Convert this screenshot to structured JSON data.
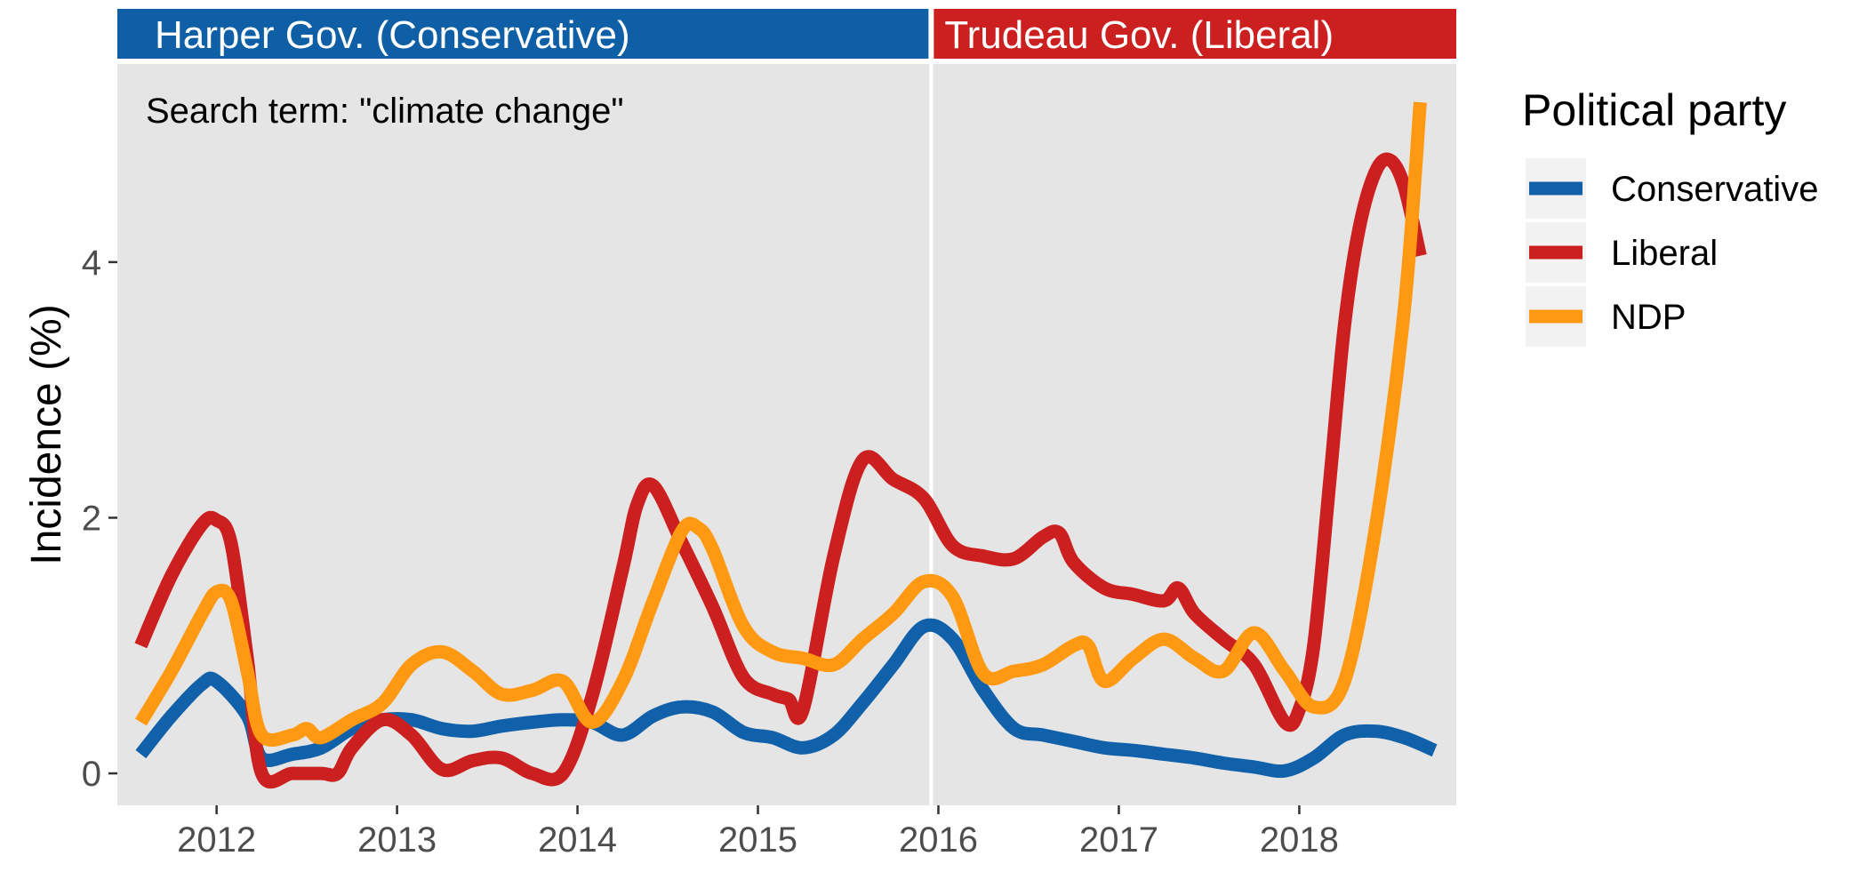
{
  "chart_data": {
    "type": "line",
    "title": "",
    "xlabel": "",
    "ylabel": "Incidence (%)",
    "xlim": [
      2011.45,
      2018.87
    ],
    "ylim": [
      -0.25,
      5.55
    ],
    "x_ticks": [
      2012,
      2013,
      2014,
      2015,
      2016,
      2017,
      2018
    ],
    "y_ticks": [
      0,
      2,
      4
    ],
    "grid": false,
    "legend": {
      "title": "Political party",
      "placement": "right"
    },
    "annotation": "Search term: \"climate change\"",
    "panels": [
      {
        "label": "Harper Gov. (Conservative)",
        "x_range": [
          2011.45,
          2015.96
        ],
        "color": "#0f5fa6"
      },
      {
        "label": "Trudeau Gov. (Liberal)",
        "x_range": [
          2015.96,
          2018.87
        ],
        "color": "#cc1f1f"
      }
    ],
    "series": [
      {
        "name": "Conservative",
        "color": "#1060aa",
        "points": [
          [
            2011.58,
            0.15
          ],
          [
            2011.75,
            0.45
          ],
          [
            2011.92,
            0.7
          ],
          [
            2012.0,
            0.72
          ],
          [
            2012.17,
            0.45
          ],
          [
            2012.25,
            0.12
          ],
          [
            2012.42,
            0.15
          ],
          [
            2012.58,
            0.2
          ],
          [
            2012.75,
            0.35
          ],
          [
            2012.92,
            0.42
          ],
          [
            2013.08,
            0.42
          ],
          [
            2013.25,
            0.35
          ],
          [
            2013.42,
            0.33
          ],
          [
            2013.58,
            0.37
          ],
          [
            2013.75,
            0.4
          ],
          [
            2013.92,
            0.42
          ],
          [
            2014.08,
            0.4
          ],
          [
            2014.25,
            0.3
          ],
          [
            2014.42,
            0.45
          ],
          [
            2014.58,
            0.52
          ],
          [
            2014.75,
            0.48
          ],
          [
            2014.92,
            0.32
          ],
          [
            2015.08,
            0.28
          ],
          [
            2015.25,
            0.2
          ],
          [
            2015.42,
            0.3
          ],
          [
            2015.58,
            0.55
          ],
          [
            2015.75,
            0.85
          ],
          [
            2015.92,
            1.15
          ],
          [
            2016.08,
            1.05
          ],
          [
            2016.25,
            0.65
          ],
          [
            2016.42,
            0.35
          ],
          [
            2016.58,
            0.3
          ],
          [
            2016.75,
            0.25
          ],
          [
            2016.92,
            0.2
          ],
          [
            2017.08,
            0.18
          ],
          [
            2017.25,
            0.15
          ],
          [
            2017.42,
            0.12
          ],
          [
            2017.58,
            0.08
          ],
          [
            2017.75,
            0.05
          ],
          [
            2017.92,
            0.02
          ],
          [
            2018.08,
            0.12
          ],
          [
            2018.25,
            0.3
          ],
          [
            2018.42,
            0.33
          ],
          [
            2018.58,
            0.28
          ],
          [
            2018.75,
            0.18
          ]
        ]
      },
      {
        "name": "Liberal",
        "color": "#cc1f1f",
        "points": [
          [
            2011.58,
            1.0
          ],
          [
            2011.75,
            1.55
          ],
          [
            2011.92,
            1.95
          ],
          [
            2012.0,
            1.98
          ],
          [
            2012.08,
            1.8
          ],
          [
            2012.17,
            0.9
          ],
          [
            2012.25,
            0.0
          ],
          [
            2012.42,
            0.0
          ],
          [
            2012.58,
            0.0
          ],
          [
            2012.67,
            0.0
          ],
          [
            2012.75,
            0.2
          ],
          [
            2012.92,
            0.42
          ],
          [
            2013.08,
            0.3
          ],
          [
            2013.25,
            0.03
          ],
          [
            2013.42,
            0.1
          ],
          [
            2013.58,
            0.12
          ],
          [
            2013.75,
            0.0
          ],
          [
            2013.92,
            0.0
          ],
          [
            2014.08,
            0.6
          ],
          [
            2014.25,
            1.6
          ],
          [
            2014.33,
            2.1
          ],
          [
            2014.42,
            2.25
          ],
          [
            2014.58,
            1.8
          ],
          [
            2014.75,
            1.3
          ],
          [
            2014.92,
            0.75
          ],
          [
            2015.08,
            0.62
          ],
          [
            2015.17,
            0.58
          ],
          [
            2015.25,
            0.5
          ],
          [
            2015.42,
            1.7
          ],
          [
            2015.58,
            2.45
          ],
          [
            2015.75,
            2.3
          ],
          [
            2015.92,
            2.15
          ],
          [
            2016.08,
            1.78
          ],
          [
            2016.25,
            1.7
          ],
          [
            2016.42,
            1.68
          ],
          [
            2016.58,
            1.85
          ],
          [
            2016.67,
            1.88
          ],
          [
            2016.75,
            1.65
          ],
          [
            2016.92,
            1.45
          ],
          [
            2017.08,
            1.4
          ],
          [
            2017.25,
            1.35
          ],
          [
            2017.33,
            1.45
          ],
          [
            2017.42,
            1.25
          ],
          [
            2017.58,
            1.05
          ],
          [
            2017.75,
            0.85
          ],
          [
            2017.92,
            0.4
          ],
          [
            2018.0,
            0.5
          ],
          [
            2018.08,
            1.0
          ],
          [
            2018.17,
            2.3
          ],
          [
            2018.25,
            3.5
          ],
          [
            2018.33,
            4.25
          ],
          [
            2018.42,
            4.7
          ],
          [
            2018.5,
            4.8
          ],
          [
            2018.58,
            4.6
          ],
          [
            2018.67,
            4.05
          ]
        ]
      },
      {
        "name": "NDP",
        "color": "#ff9912",
        "points": [
          [
            2011.58,
            0.4
          ],
          [
            2011.75,
            0.8
          ],
          [
            2011.92,
            1.25
          ],
          [
            2012.0,
            1.42
          ],
          [
            2012.08,
            1.35
          ],
          [
            2012.17,
            0.8
          ],
          [
            2012.25,
            0.3
          ],
          [
            2012.42,
            0.3
          ],
          [
            2012.5,
            0.35
          ],
          [
            2012.58,
            0.28
          ],
          [
            2012.75,
            0.42
          ],
          [
            2012.92,
            0.55
          ],
          [
            2013.08,
            0.85
          ],
          [
            2013.25,
            0.95
          ],
          [
            2013.42,
            0.8
          ],
          [
            2013.58,
            0.62
          ],
          [
            2013.75,
            0.65
          ],
          [
            2013.92,
            0.72
          ],
          [
            2014.08,
            0.4
          ],
          [
            2014.25,
            0.72
          ],
          [
            2014.42,
            1.35
          ],
          [
            2014.58,
            1.9
          ],
          [
            2014.67,
            1.92
          ],
          [
            2014.75,
            1.75
          ],
          [
            2014.92,
            1.15
          ],
          [
            2015.08,
            0.95
          ],
          [
            2015.25,
            0.9
          ],
          [
            2015.42,
            0.85
          ],
          [
            2015.58,
            1.05
          ],
          [
            2015.75,
            1.25
          ],
          [
            2015.92,
            1.5
          ],
          [
            2016.08,
            1.38
          ],
          [
            2016.25,
            0.78
          ],
          [
            2016.42,
            0.8
          ],
          [
            2016.58,
            0.85
          ],
          [
            2016.75,
            1.0
          ],
          [
            2016.83,
            1.0
          ],
          [
            2016.92,
            0.72
          ],
          [
            2017.08,
            0.9
          ],
          [
            2017.25,
            1.05
          ],
          [
            2017.42,
            0.9
          ],
          [
            2017.58,
            0.8
          ],
          [
            2017.75,
            1.1
          ],
          [
            2017.92,
            0.8
          ],
          [
            2018.08,
            0.52
          ],
          [
            2018.25,
            0.72
          ],
          [
            2018.42,
            1.9
          ],
          [
            2018.58,
            3.6
          ],
          [
            2018.67,
            5.25
          ]
        ]
      }
    ]
  }
}
